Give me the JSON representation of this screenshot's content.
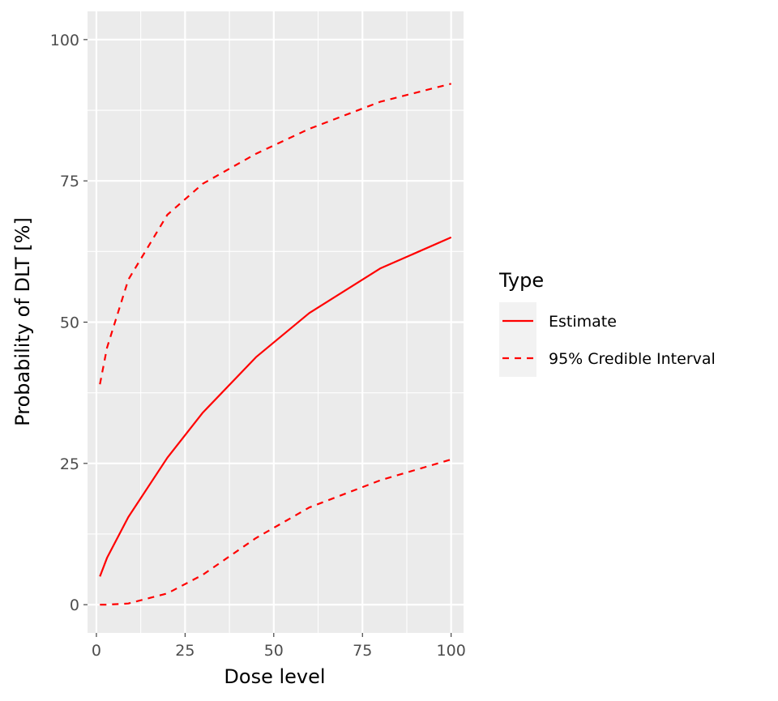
{
  "chart_data": {
    "type": "line",
    "xlabel": "Dose level",
    "ylabel": "Probability of DLT [%]",
    "xlim": [
      -2.5,
      103.5
    ],
    "ylim": [
      -5,
      105
    ],
    "x_ticks": [
      0,
      25,
      50,
      75,
      100
    ],
    "y_ticks": [
      0,
      25,
      50,
      75,
      100
    ],
    "x_tick_labels": [
      "0",
      "25",
      "50",
      "75",
      "100"
    ],
    "y_tick_labels": [
      "0",
      "25",
      "50",
      "75",
      "100"
    ],
    "grid": true,
    "line_color": "#ff0000",
    "panel_color": "#ebebeb",
    "legend": {
      "title": "Type",
      "placement": "right",
      "entries": [
        {
          "label": "Estimate",
          "linestyle": "solid"
        },
        {
          "label": "95% Credible Interval",
          "linestyle": "dashed"
        }
      ]
    },
    "series": [
      {
        "name": "Estimate",
        "linestyle": "solid",
        "x": [
          1,
          3,
          9,
          20,
          30,
          45,
          60,
          80,
          100
        ],
        "y": [
          5,
          8.3,
          15.5,
          26,
          34,
          43.8,
          51.6,
          59.5,
          65
        ]
      },
      {
        "name": "95% Credible Interval",
        "linestyle": "dashed",
        "x": [
          1,
          3,
          9,
          20,
          30,
          45,
          60,
          80,
          100
        ],
        "y": [
          39,
          45.5,
          57.5,
          69,
          74.5,
          79.8,
          84.2,
          89,
          92.2
        ]
      },
      {
        "name": "95% Credible Interval",
        "linestyle": "dashed",
        "x": [
          1,
          3,
          9,
          20,
          30,
          45,
          60,
          80,
          100
        ],
        "y": [
          0,
          0,
          0.2,
          2,
          5.3,
          11.8,
          17.2,
          22,
          25.7
        ]
      }
    ]
  }
}
